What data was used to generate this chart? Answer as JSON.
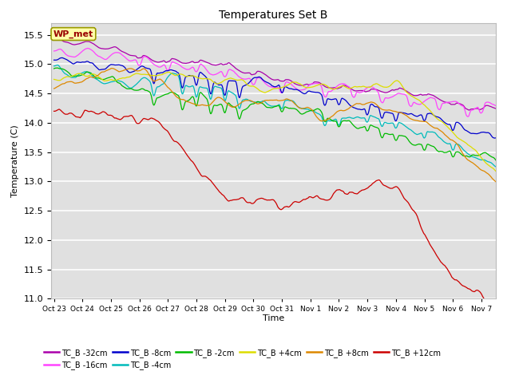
{
  "title": "Temperatures Set B",
  "xlabel": "Time",
  "ylabel": "Temperature (C)",
  "ylim": [
    11.0,
    15.7
  ],
  "yticks": [
    11.0,
    11.5,
    12.0,
    12.5,
    13.0,
    13.5,
    14.0,
    14.5,
    15.0,
    15.5
  ],
  "xtick_labels": [
    "Oct 23",
    "Oct 24",
    "Oct 25",
    "Oct 26",
    "Oct 27",
    "Oct 28",
    "Oct 29",
    "Oct 30",
    "Oct 31",
    "Nov 1",
    "Nov 2",
    "Nov 3",
    "Nov 4",
    "Nov 5",
    "Nov 6",
    "Nov 7"
  ],
  "legend_entries": [
    {
      "label": "TC_B -32cm",
      "color": "#aa00aa"
    },
    {
      "label": "TC_B -16cm",
      "color": "#ff44ff"
    },
    {
      "label": "TC_B -8cm",
      "color": "#0000cc"
    },
    {
      "label": "TC_B -4cm",
      "color": "#00bbbb"
    },
    {
      "label": "TC_B -2cm",
      "color": "#00bb00"
    },
    {
      "label": "TC_B +4cm",
      "color": "#dddd00"
    },
    {
      "label": "TC_B +8cm",
      "color": "#dd8800"
    },
    {
      "label": "TC_B +12cm",
      "color": "#cc0000"
    }
  ],
  "wp_met_label": "WP_met",
  "bg_color": "#ffffff",
  "plot_bg_color": "#e0e0e0",
  "grid_color": "#ffffff",
  "n_points": 2000
}
